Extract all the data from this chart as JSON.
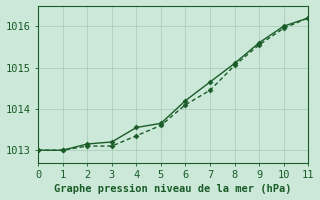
{
  "xlabel": "Graphe pression niveau de la mer (hPa)",
  "xlim": [
    0,
    11
  ],
  "ylim": [
    1012.7,
    1016.5
  ],
  "yticks": [
    1013,
    1014,
    1015,
    1016
  ],
  "xticks": [
    0,
    1,
    2,
    3,
    4,
    5,
    6,
    7,
    8,
    9,
    10,
    11
  ],
  "background_color": "#cce8d8",
  "grid_color": "#aacfbc",
  "line_color": "#1a5c28",
  "series1_x": [
    0,
    1,
    2,
    3,
    4,
    5,
    6,
    7,
    8,
    9,
    10,
    11
  ],
  "series1_y": [
    1013.0,
    1013.0,
    1013.15,
    1013.2,
    1013.55,
    1013.65,
    1014.2,
    1014.65,
    1015.1,
    1015.6,
    1016.0,
    1016.2
  ],
  "series2_x": [
    0,
    1,
    2,
    3,
    4,
    5,
    6,
    7,
    8,
    9,
    10,
    11
  ],
  "series2_y": [
    1013.0,
    1013.0,
    1013.1,
    1013.1,
    1013.35,
    1013.6,
    1014.1,
    1014.45,
    1015.05,
    1015.55,
    1015.95,
    1016.2
  ],
  "font_color": "#1a5c28",
  "font_size": 7.5,
  "line_width": 1.0,
  "marker_size": 2.5
}
